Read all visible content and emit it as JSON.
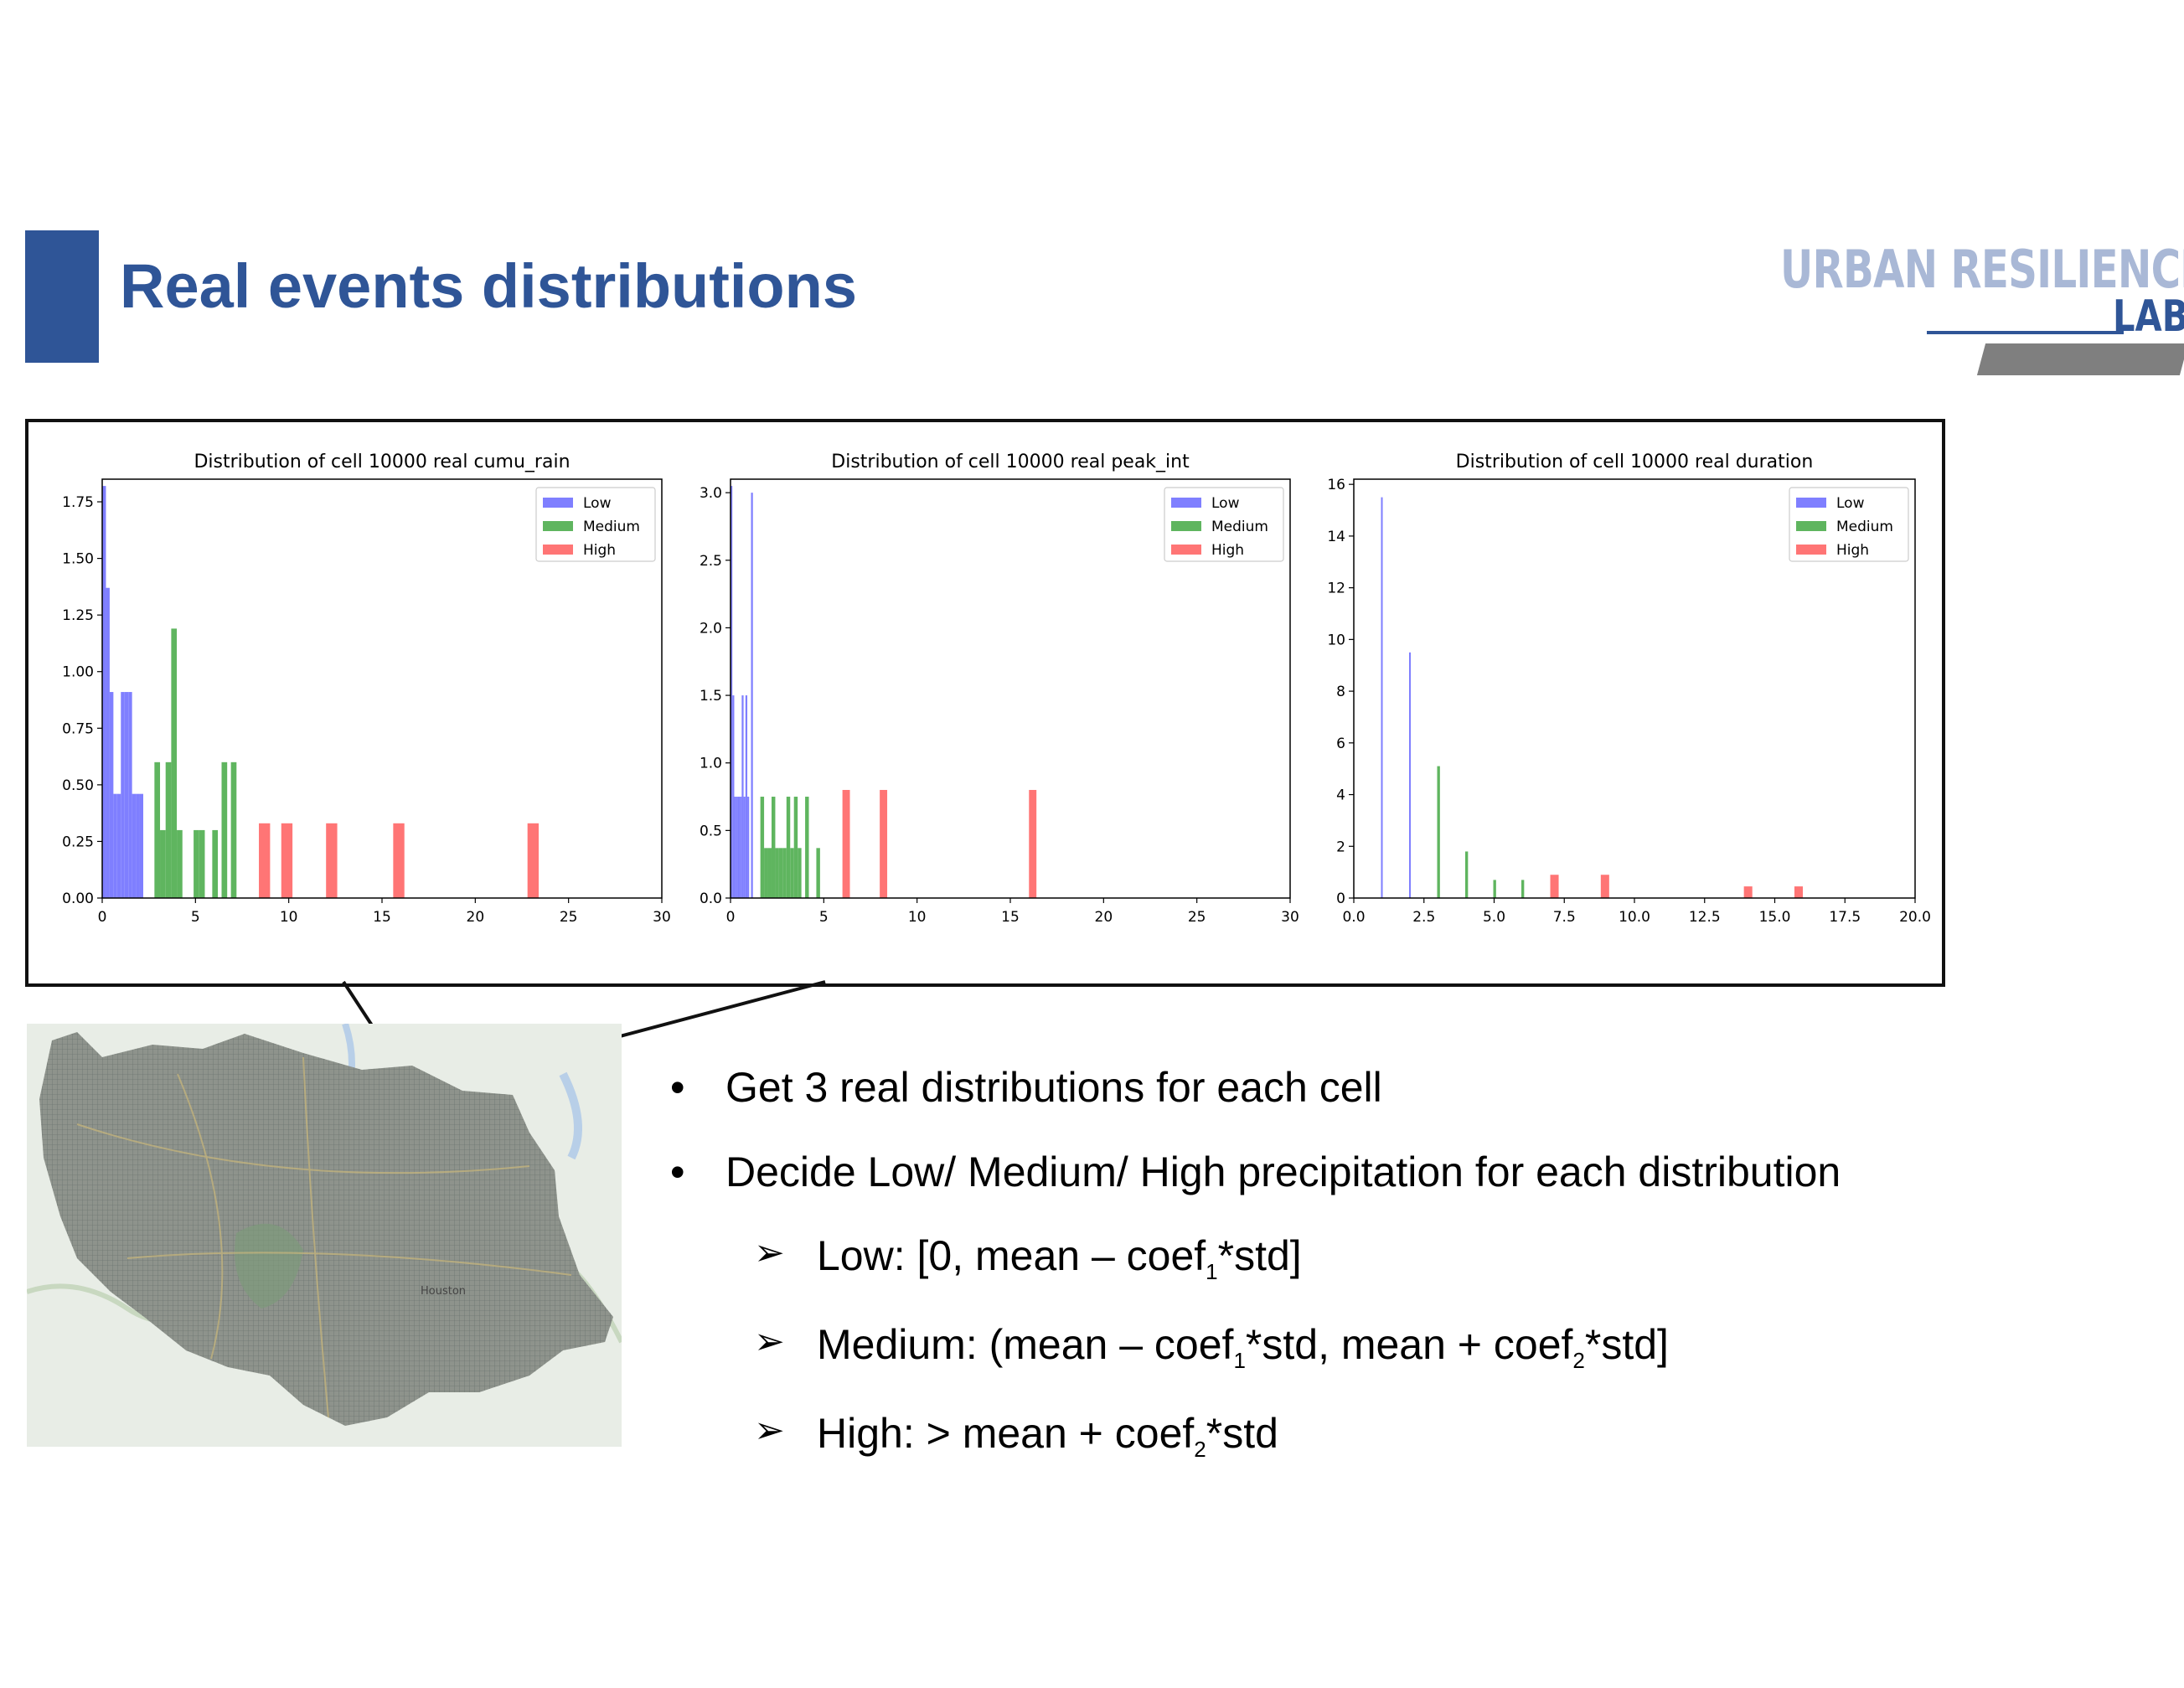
{
  "slide": {
    "title": "Real events distributions",
    "logo_line1": "URBAN RESILIENCE.AI",
    "logo_line2": "LAB",
    "colors": {
      "accent": "#2f5597",
      "logo_light": "#a9b8d6",
      "low": "#7f7fff",
      "medium": "#5fb55f",
      "high": "#ff7575"
    }
  },
  "map": {
    "city_label": "Houston"
  },
  "bullets": {
    "b1": "Get 3 real distributions for each cell",
    "b2": "Decide Low/ Medium/ High precipitation for each distribution",
    "s1": {
      "pre": "Low: [0, mean – coef",
      "sub1": "1",
      "post": "*std]"
    },
    "s2": {
      "pre": "Medium: (mean – coef",
      "sub1": "1",
      "mid": "*std, mean + coef",
      "sub2": "2",
      "post": "*std]"
    },
    "s3": {
      "pre": "High: > mean + coef",
      "sub2": "2",
      "post": "*std"
    }
  },
  "chart_data": [
    {
      "type": "bar",
      "title": "Distribution of cell 10000 real cumu_rain",
      "xlim": [
        0,
        30
      ],
      "ylim": [
        0,
        1.85
      ],
      "xticks": [
        0,
        5,
        10,
        15,
        20,
        25,
        30
      ],
      "yticks": [
        0.0,
        0.25,
        0.5,
        0.75,
        1.0,
        1.25,
        1.5,
        1.75
      ],
      "xtick_labels": [
        "0",
        "5",
        "10",
        "15",
        "20",
        "25",
        "30"
      ],
      "ytick_labels": [
        "0.00",
        "0.25",
        "0.50",
        "0.75",
        "1.00",
        "1.25",
        "1.50",
        "1.75"
      ],
      "legend": [
        "Low",
        "Medium",
        "High"
      ],
      "legend_position": "top-right",
      "series": [
        {
          "name": "Low",
          "bars": [
            {
              "x0": 0.0,
              "x1": 0.2,
              "y": 1.82
            },
            {
              "x0": 0.2,
              "x1": 0.4,
              "y": 1.37
            },
            {
              "x0": 0.4,
              "x1": 0.6,
              "y": 0.91
            },
            {
              "x0": 0.6,
              "x1": 0.8,
              "y": 0.46
            },
            {
              "x0": 0.8,
              "x1": 1.0,
              "y": 0.46
            },
            {
              "x0": 1.0,
              "x1": 1.2,
              "y": 0.91
            },
            {
              "x0": 1.2,
              "x1": 1.4,
              "y": 0.91
            },
            {
              "x0": 1.4,
              "x1": 1.6,
              "y": 0.91
            },
            {
              "x0": 1.6,
              "x1": 1.8,
              "y": 0.46
            },
            {
              "x0": 1.8,
              "x1": 2.0,
              "y": 0.46
            },
            {
              "x0": 2.0,
              "x1": 2.2,
              "y": 0.46
            }
          ]
        },
        {
          "name": "Medium",
          "bars": [
            {
              "x0": 2.8,
              "x1": 3.1,
              "y": 0.6
            },
            {
              "x0": 3.1,
              "x1": 3.4,
              "y": 0.3
            },
            {
              "x0": 3.4,
              "x1": 3.7,
              "y": 0.6
            },
            {
              "x0": 3.7,
              "x1": 4.0,
              "y": 1.19
            },
            {
              "x0": 4.0,
              "x1": 4.3,
              "y": 0.3
            },
            {
              "x0": 4.9,
              "x1": 5.2,
              "y": 0.3
            },
            {
              "x0": 5.2,
              "x1": 5.5,
              "y": 0.3
            },
            {
              "x0": 5.9,
              "x1": 6.2,
              "y": 0.3
            },
            {
              "x0": 6.4,
              "x1": 6.7,
              "y": 0.6
            },
            {
              "x0": 6.9,
              "x1": 7.2,
              "y": 0.6
            }
          ]
        },
        {
          "name": "High",
          "bars": [
            {
              "x0": 8.4,
              "x1": 9.0,
              "y": 0.33
            },
            {
              "x0": 9.6,
              "x1": 10.2,
              "y": 0.33
            },
            {
              "x0": 12.0,
              "x1": 12.6,
              "y": 0.33
            },
            {
              "x0": 15.6,
              "x1": 16.2,
              "y": 0.33
            },
            {
              "x0": 22.8,
              "x1": 23.4,
              "y": 0.33
            }
          ]
        }
      ]
    },
    {
      "type": "bar",
      "title": "Distribution of cell 10000 real peak_int",
      "xlim": [
        0,
        30
      ],
      "ylim": [
        0,
        3.1
      ],
      "xticks": [
        0,
        5,
        10,
        15,
        20,
        25,
        30
      ],
      "yticks": [
        0.0,
        0.5,
        1.0,
        1.5,
        2.0,
        2.5,
        3.0
      ],
      "xtick_labels": [
        "0",
        "5",
        "10",
        "15",
        "20",
        "25",
        "30"
      ],
      "ytick_labels": [
        "0.0",
        "0.5",
        "1.0",
        "1.5",
        "2.0",
        "2.5",
        "3.0"
      ],
      "legend": [
        "Low",
        "Medium",
        "High"
      ],
      "legend_position": "top-right",
      "series": [
        {
          "name": "Low",
          "bars": [
            {
              "x0": 0.0,
              "x1": 0.1,
              "y": 3.05
            },
            {
              "x0": 0.1,
              "x1": 0.2,
              "y": 1.5
            },
            {
              "x0": 0.2,
              "x1": 0.3,
              "y": 0.75
            },
            {
              "x0": 0.3,
              "x1": 0.4,
              "y": 0.75
            },
            {
              "x0": 0.4,
              "x1": 0.5,
              "y": 0.75
            },
            {
              "x0": 0.5,
              "x1": 0.6,
              "y": 0.75
            },
            {
              "x0": 0.6,
              "x1": 0.7,
              "y": 1.5
            },
            {
              "x0": 0.7,
              "x1": 0.8,
              "y": 0.75
            },
            {
              "x0": 0.8,
              "x1": 0.9,
              "y": 1.5
            },
            {
              "x0": 0.9,
              "x1": 1.0,
              "y": 0.75
            },
            {
              "x0": 1.1,
              "x1": 1.2,
              "y": 3.0
            }
          ]
        },
        {
          "name": "Medium",
          "bars": [
            {
              "x0": 1.6,
              "x1": 1.8,
              "y": 0.75
            },
            {
              "x0": 1.8,
              "x1": 2.0,
              "y": 0.37
            },
            {
              "x0": 2.0,
              "x1": 2.2,
              "y": 0.37
            },
            {
              "x0": 2.2,
              "x1": 2.4,
              "y": 0.75
            },
            {
              "x0": 2.4,
              "x1": 2.6,
              "y": 0.37
            },
            {
              "x0": 2.6,
              "x1": 2.8,
              "y": 0.37
            },
            {
              "x0": 2.8,
              "x1": 3.0,
              "y": 0.37
            },
            {
              "x0": 3.0,
              "x1": 3.2,
              "y": 0.75
            },
            {
              "x0": 3.2,
              "x1": 3.4,
              "y": 0.37
            },
            {
              "x0": 3.4,
              "x1": 3.6,
              "y": 0.75
            },
            {
              "x0": 3.6,
              "x1": 3.8,
              "y": 0.37
            },
            {
              "x0": 4.0,
              "x1": 4.2,
              "y": 0.75
            },
            {
              "x0": 4.6,
              "x1": 4.8,
              "y": 0.37
            }
          ]
        },
        {
          "name": "High",
          "bars": [
            {
              "x0": 6.0,
              "x1": 6.4,
              "y": 0.8
            },
            {
              "x0": 8.0,
              "x1": 8.4,
              "y": 0.8
            },
            {
              "x0": 16.0,
              "x1": 16.4,
              "y": 0.8
            }
          ]
        }
      ]
    },
    {
      "type": "bar",
      "title": "Distribution of cell 10000 real duration",
      "xlim": [
        0,
        20
      ],
      "ylim": [
        0,
        16.2
      ],
      "xticks": [
        0.0,
        2.5,
        5.0,
        7.5,
        10.0,
        12.5,
        15.0,
        17.5,
        20.0
      ],
      "yticks": [
        0,
        2,
        4,
        6,
        8,
        10,
        12,
        14,
        16
      ],
      "xtick_labels": [
        "0.0",
        "2.5",
        "5.0",
        "7.5",
        "10.0",
        "12.5",
        "15.0",
        "17.5",
        "20.0"
      ],
      "ytick_labels": [
        "0",
        "2",
        "4",
        "6",
        "8",
        "10",
        "12",
        "14",
        "16"
      ],
      "legend": [
        "Low",
        "Medium",
        "High"
      ],
      "legend_position": "top-right",
      "series": [
        {
          "name": "Low",
          "bars": [
            {
              "x0": 0.97,
              "x1": 1.03,
              "y": 15.5
            },
            {
              "x0": 1.97,
              "x1": 2.03,
              "y": 9.5
            }
          ]
        },
        {
          "name": "Medium",
          "bars": [
            {
              "x0": 2.97,
              "x1": 3.07,
              "y": 5.1
            },
            {
              "x0": 3.97,
              "x1": 4.07,
              "y": 1.8
            },
            {
              "x0": 4.97,
              "x1": 5.07,
              "y": 0.7
            },
            {
              "x0": 5.97,
              "x1": 6.07,
              "y": 0.7
            }
          ]
        },
        {
          "name": "High",
          "bars": [
            {
              "x0": 7.0,
              "x1": 7.3,
              "y": 0.9
            },
            {
              "x0": 8.8,
              "x1": 9.1,
              "y": 0.9
            },
            {
              "x0": 13.9,
              "x1": 14.2,
              "y": 0.45
            },
            {
              "x0": 15.7,
              "x1": 16.0,
              "y": 0.45
            }
          ]
        }
      ]
    }
  ]
}
